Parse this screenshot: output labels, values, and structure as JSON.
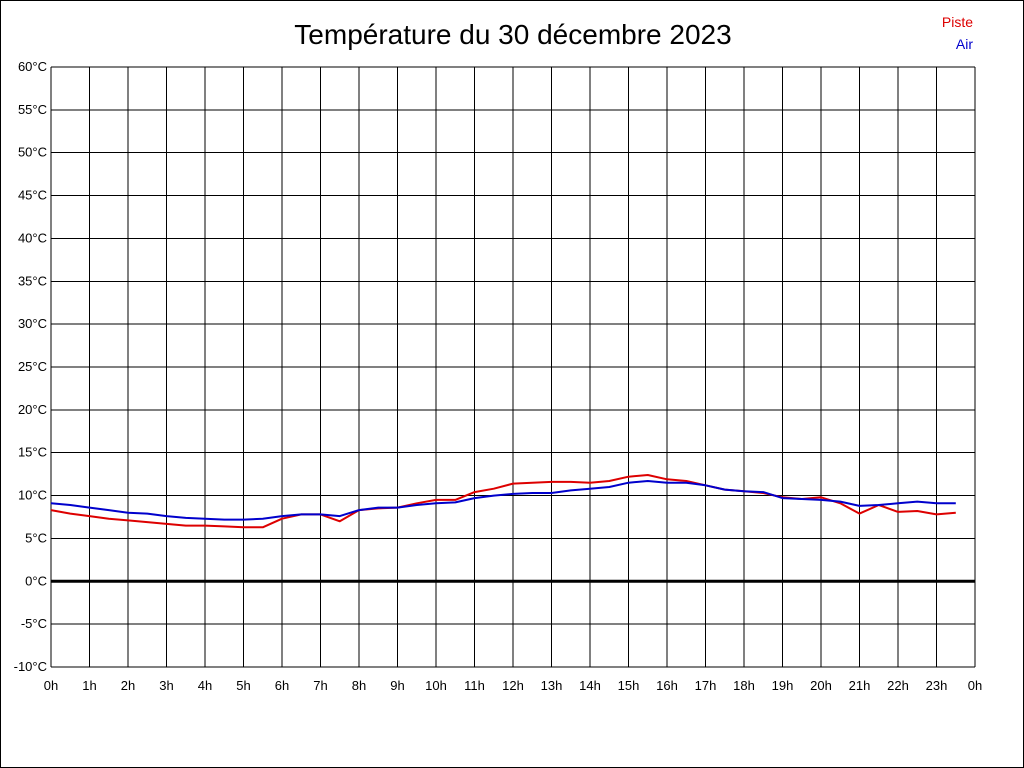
{
  "chart_data": {
    "type": "line",
    "title": "Température du 30 décembre 2023",
    "xlabel": "",
    "ylabel": "",
    "ylim": [
      -10,
      60
    ],
    "xlim": [
      0,
      24
    ],
    "grid": true,
    "legend_position": "top-right",
    "y_ticks": [
      "60°C",
      "55°C",
      "50°C",
      "45°C",
      "40°C",
      "35°C",
      "30°C",
      "25°C",
      "20°C",
      "15°C",
      "10°C",
      "5°C",
      "0°C",
      "-5°C",
      "-10°C"
    ],
    "x_ticks": [
      "0h",
      "1h",
      "2h",
      "3h",
      "4h",
      "5h",
      "6h",
      "7h",
      "8h",
      "9h",
      "10h",
      "11h",
      "12h",
      "13h",
      "14h",
      "15h",
      "16h",
      "17h",
      "18h",
      "19h",
      "20h",
      "21h",
      "22h",
      "23h",
      "0h"
    ],
    "series": [
      {
        "name": "Piste",
        "color": "#dd0000",
        "x": [
          0,
          0.5,
          1,
          1.5,
          2,
          2.5,
          3,
          3.5,
          4,
          4.5,
          5,
          5.5,
          6,
          6.5,
          7,
          7.5,
          8,
          8.5,
          9,
          9.5,
          10,
          10.5,
          11,
          11.5,
          12,
          12.5,
          13,
          13.5,
          14,
          14.5,
          15,
          15.5,
          16,
          16.5,
          17,
          17.5,
          18,
          18.5,
          19,
          19.5,
          20,
          20.5,
          21,
          21.5,
          22,
          22.5,
          23,
          23.5
        ],
        "y": [
          8.3,
          7.9,
          7.6,
          7.3,
          7.1,
          6.9,
          6.7,
          6.5,
          6.5,
          6.4,
          6.3,
          6.3,
          7.3,
          7.8,
          7.8,
          7.0,
          8.3,
          8.5,
          8.6,
          9.1,
          9.5,
          9.5,
          10.4,
          10.8,
          11.4,
          11.5,
          11.6,
          11.6,
          11.5,
          11.7,
          12.2,
          12.4,
          11.9,
          11.7,
          11.2,
          10.7,
          10.5,
          10.3,
          9.8,
          9.6,
          9.8,
          9.1,
          7.9,
          8.9,
          8.1,
          8.2,
          7.8,
          8.0
        ]
      },
      {
        "name": "Air",
        "color": "#0000cc",
        "x": [
          0,
          0.5,
          1,
          1.5,
          2,
          2.5,
          3,
          3.5,
          4,
          4.5,
          5,
          5.5,
          6,
          6.5,
          7,
          7.5,
          8,
          8.5,
          9,
          9.5,
          10,
          10.5,
          11,
          11.5,
          12,
          12.5,
          13,
          13.5,
          14,
          14.5,
          15,
          15.5,
          16,
          16.5,
          17,
          17.5,
          18,
          18.5,
          19,
          19.5,
          20,
          20.5,
          21,
          21.5,
          22,
          22.5,
          23,
          23.5
        ],
        "y": [
          9.1,
          8.9,
          8.6,
          8.3,
          8.0,
          7.9,
          7.6,
          7.4,
          7.3,
          7.2,
          7.2,
          7.3,
          7.6,
          7.8,
          7.8,
          7.6,
          8.3,
          8.6,
          8.6,
          8.9,
          9.1,
          9.2,
          9.7,
          10.0,
          10.2,
          10.3,
          10.3,
          10.6,
          10.8,
          11.0,
          11.5,
          11.7,
          11.5,
          11.5,
          11.2,
          10.7,
          10.5,
          10.4,
          9.7,
          9.6,
          9.5,
          9.3,
          8.8,
          8.9,
          9.1,
          9.3,
          9.1,
          9.1
        ]
      }
    ],
    "reference_line": {
      "y": 0,
      "color": "#000000"
    }
  }
}
